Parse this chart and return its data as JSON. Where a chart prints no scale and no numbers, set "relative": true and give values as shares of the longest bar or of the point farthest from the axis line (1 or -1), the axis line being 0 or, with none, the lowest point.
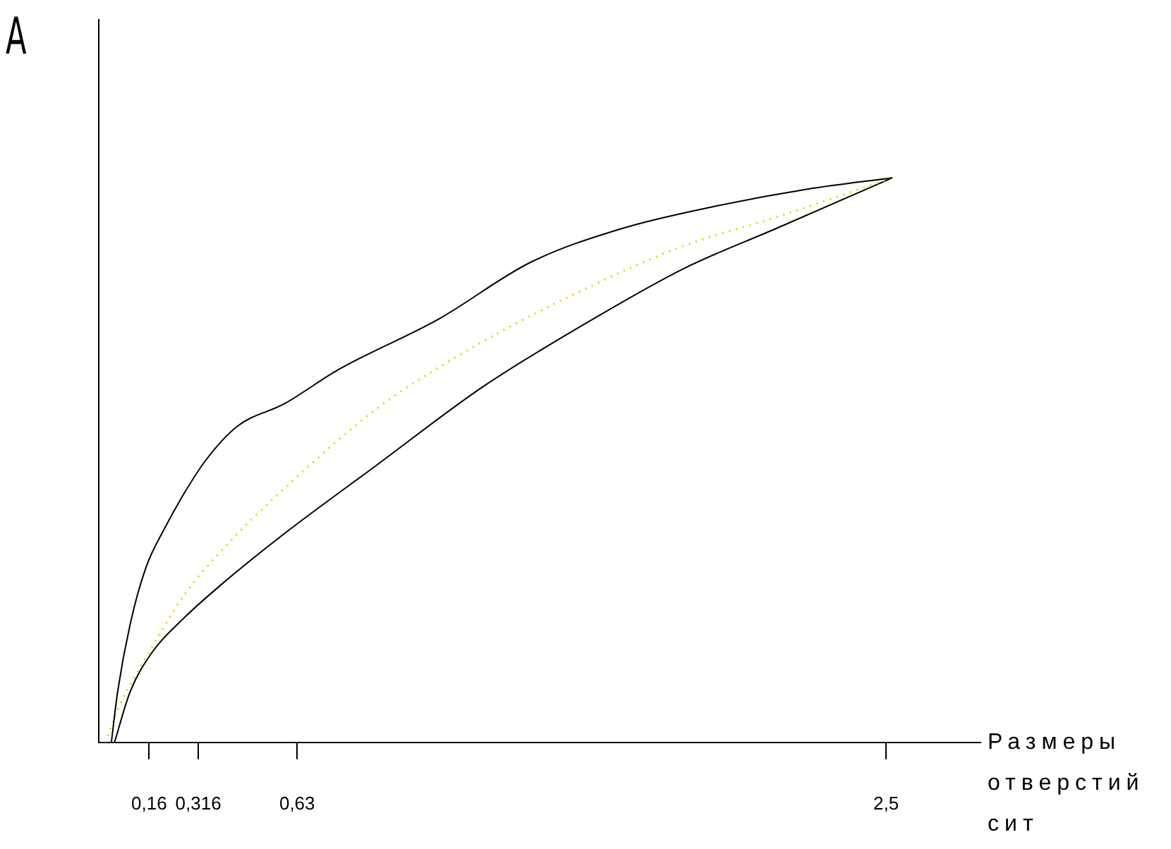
{
  "chart_data": {
    "type": "line",
    "relative": true,
    "ylabel": "А",
    "xlabel": "Размеры отверстий сит",
    "xlim": [
      0,
      2.8
    ],
    "xticks": [
      {
        "value": 0.16,
        "label": "0,16"
      },
      {
        "value": 0.316,
        "label": "0,316"
      },
      {
        "value": 0.63,
        "label": "0,63"
      },
      {
        "value": 2.5,
        "label": "2,5"
      }
    ],
    "grid": false,
    "legend": false,
    "marker": "none",
    "series": [
      {
        "color": "#000000",
        "line_style": "solid",
        "x": [
          0.04,
          0.06,
          0.1,
          0.15,
          0.21,
          0.27,
          0.34,
          0.44,
          0.59,
          0.76,
          1.08,
          1.37,
          1.66,
          1.96,
          2.25,
          2.52
        ],
        "values": [
          0,
          0.09,
          0.21,
          0.31,
          0.38,
          0.44,
          0.5,
          0.56,
          0.6,
          0.66,
          0.75,
          0.85,
          0.91,
          0.95,
          0.98,
          1
        ]
      },
      {
        "color": "#e6d200",
        "line_style": "dotted",
        "x": [
          0.02,
          0.07,
          0.15,
          0.27,
          0.39,
          0.59,
          0.88,
          1.22,
          1.57,
          1.86,
          2.15,
          2.52
        ],
        "values": [
          0,
          0.07,
          0.15,
          0.26,
          0.34,
          0.45,
          0.59,
          0.71,
          0.81,
          0.88,
          0.93,
          1
        ]
      },
      {
        "color": "#000000",
        "line_style": "solid",
        "x": [
          0.05,
          0.1,
          0.17,
          0.27,
          0.39,
          0.59,
          0.88,
          1.22,
          1.57,
          1.86,
          2.15,
          2.52
        ],
        "values": [
          0,
          0.09,
          0.16,
          0.22,
          0.28,
          0.37,
          0.49,
          0.63,
          0.75,
          0.84,
          0.91,
          1
        ]
      }
    ]
  }
}
